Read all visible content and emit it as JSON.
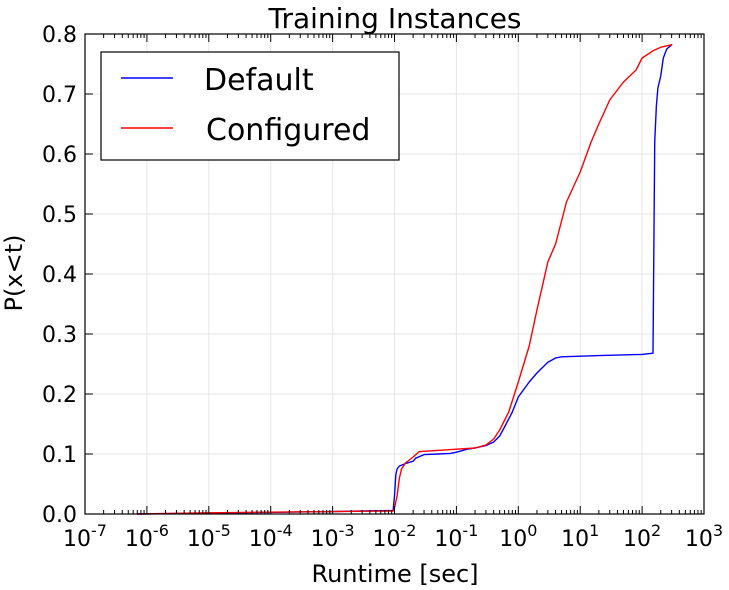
{
  "chart_data": {
    "type": "line",
    "title": "Training Instances",
    "xlabel": "Runtime [sec]",
    "ylabel": "P(x<t)",
    "xscale": "log",
    "xlim": [
      1e-07,
      1000
    ],
    "ylim": [
      0.0,
      0.8
    ],
    "grid": true,
    "legend_position": "top-left",
    "x_ticks": [
      {
        "base": "10",
        "exp": "-7",
        "value": 1e-07
      },
      {
        "base": "10",
        "exp": "-6",
        "value": 1e-06
      },
      {
        "base": "10",
        "exp": "-5",
        "value": 1e-05
      },
      {
        "base": "10",
        "exp": "-4",
        "value": 0.0001
      },
      {
        "base": "10",
        "exp": "-3",
        "value": 0.001
      },
      {
        "base": "10",
        "exp": "-2",
        "value": 0.01
      },
      {
        "base": "10",
        "exp": "-1",
        "value": 0.1
      },
      {
        "base": "10",
        "exp": "0",
        "value": 1
      },
      {
        "base": "10",
        "exp": "1",
        "value": 10
      },
      {
        "base": "10",
        "exp": "2",
        "value": 100
      },
      {
        "base": "10",
        "exp": "3",
        "value": 1000
      }
    ],
    "y_ticks": [
      "0.0",
      "0.1",
      "0.2",
      "0.3",
      "0.4",
      "0.5",
      "0.6",
      "0.7",
      "0.8"
    ],
    "series": [
      {
        "name": "Default",
        "color": "#0000ff",
        "points": [
          [
            7e-07,
            0.0
          ],
          [
            0.001,
            0.004
          ],
          [
            0.0095,
            0.006
          ],
          [
            0.01,
            0.03
          ],
          [
            0.0105,
            0.065
          ],
          [
            0.011,
            0.075
          ],
          [
            0.012,
            0.08
          ],
          [
            0.015,
            0.084
          ],
          [
            0.02,
            0.088
          ],
          [
            0.022,
            0.093
          ],
          [
            0.03,
            0.099
          ],
          [
            0.05,
            0.1
          ],
          [
            0.08,
            0.101
          ],
          [
            0.1,
            0.103
          ],
          [
            0.15,
            0.108
          ],
          [
            0.2,
            0.11
          ],
          [
            0.3,
            0.114
          ],
          [
            0.4,
            0.12
          ],
          [
            0.5,
            0.13
          ],
          [
            0.6,
            0.145
          ],
          [
            0.8,
            0.17
          ],
          [
            1.0,
            0.195
          ],
          [
            1.5,
            0.22
          ],
          [
            2,
            0.235
          ],
          [
            3,
            0.253
          ],
          [
            4,
            0.26
          ],
          [
            5,
            0.262
          ],
          [
            20,
            0.264
          ],
          [
            100,
            0.266
          ],
          [
            150,
            0.268
          ],
          [
            155,
            0.45
          ],
          [
            160,
            0.62
          ],
          [
            170,
            0.68
          ],
          [
            180,
            0.71
          ],
          [
            200,
            0.73
          ],
          [
            220,
            0.76
          ],
          [
            250,
            0.775
          ],
          [
            300,
            0.782
          ]
        ]
      },
      {
        "name": "Configured",
        "color": "#ff0000",
        "points": [
          [
            7e-07,
            0.0
          ],
          [
            1e-05,
            0.002
          ],
          [
            0.001,
            0.004
          ],
          [
            0.0095,
            0.005
          ],
          [
            0.01,
            0.01
          ],
          [
            0.011,
            0.03
          ],
          [
            0.012,
            0.06
          ],
          [
            0.013,
            0.075
          ],
          [
            0.015,
            0.085
          ],
          [
            0.02,
            0.095
          ],
          [
            0.025,
            0.104
          ],
          [
            0.05,
            0.106
          ],
          [
            0.1,
            0.108
          ],
          [
            0.2,
            0.11
          ],
          [
            0.3,
            0.115
          ],
          [
            0.4,
            0.125
          ],
          [
            0.5,
            0.14
          ],
          [
            0.7,
            0.17
          ],
          [
            1.0,
            0.22
          ],
          [
            1.5,
            0.28
          ],
          [
            2,
            0.34
          ],
          [
            3,
            0.42
          ],
          [
            4,
            0.45
          ],
          [
            6,
            0.52
          ],
          [
            10,
            0.57
          ],
          [
            15,
            0.62
          ],
          [
            20,
            0.65
          ],
          [
            30,
            0.69
          ],
          [
            50,
            0.72
          ],
          [
            80,
            0.74
          ],
          [
            100,
            0.76
          ],
          [
            150,
            0.772
          ],
          [
            200,
            0.778
          ],
          [
            300,
            0.782
          ]
        ]
      }
    ]
  }
}
